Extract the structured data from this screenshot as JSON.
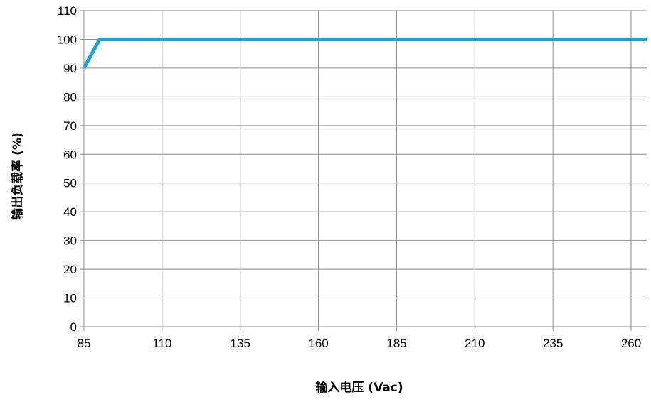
{
  "chart_data": {
    "type": "line",
    "title": "",
    "xlabel": "输入电压 (Vac)",
    "ylabel": "输出负载率 (%)",
    "xlim": [
      85,
      265
    ],
    "ylim": [
      0,
      110
    ],
    "x_ticks": [
      85,
      110,
      135,
      160,
      185,
      210,
      235,
      260
    ],
    "y_ticks": [
      0,
      10,
      20,
      30,
      40,
      50,
      60,
      70,
      80,
      90,
      100,
      110
    ],
    "grid": true,
    "legend": "none",
    "series": [
      {
        "color": "#1ba1dc",
        "x": [
          85,
          90,
          265
        ],
        "y": [
          90,
          100,
          100
        ]
      }
    ]
  }
}
